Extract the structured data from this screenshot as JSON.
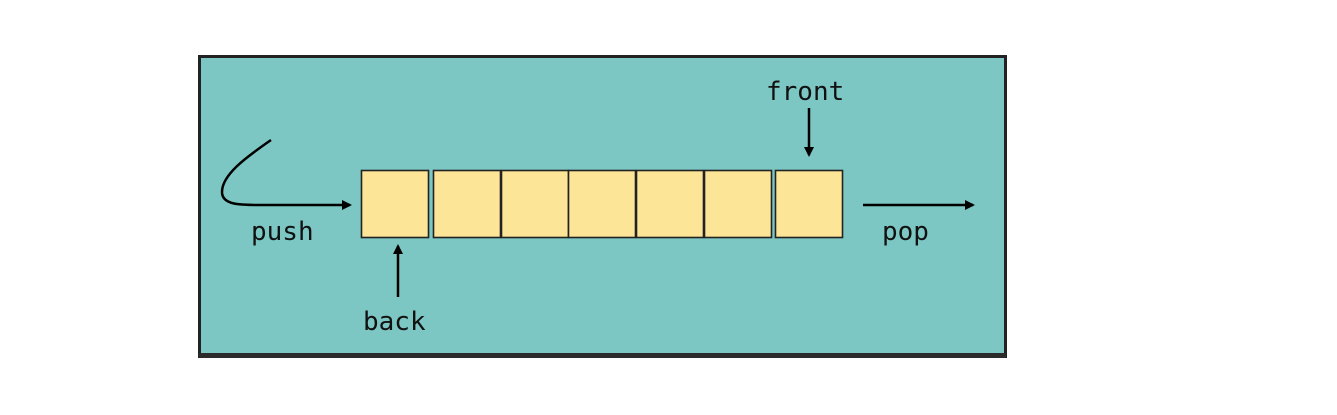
{
  "diagram": {
    "labels": {
      "push": "push",
      "pop": "pop",
      "front": "front",
      "back": "back"
    },
    "queue_cell_count": 7,
    "colors": {
      "background": "#7cc7c3",
      "border": "#222222",
      "cell_fill": "#fde597",
      "cell_stroke": "#222222",
      "arrow": "#000000",
      "text": "#111111"
    }
  }
}
